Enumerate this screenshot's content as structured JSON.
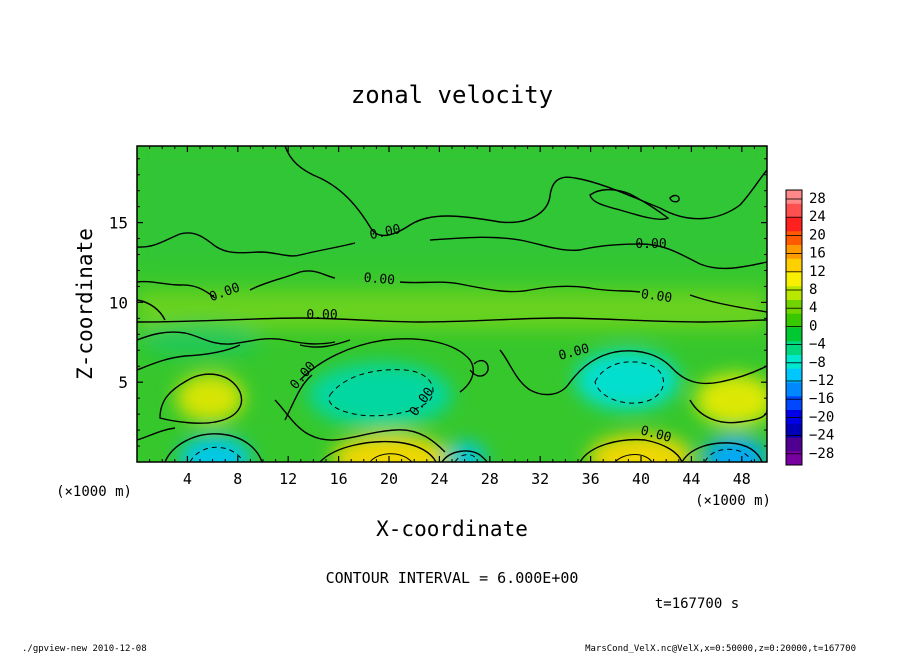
{
  "chart_data": {
    "type": "heatmap",
    "title": "zonal velocity",
    "xlabel": "X-coordinate",
    "ylabel": "Z-coordinate",
    "x_unit_left": "(×1000 m)",
    "x_unit_right": "(×1000 m)",
    "xlim": [
      0,
      50
    ],
    "ylim": [
      0,
      19.8
    ],
    "x_ticks": [
      4,
      8,
      12,
      16,
      20,
      24,
      28,
      32,
      36,
      40,
      44,
      48
    ],
    "y_ticks": [
      5,
      10,
      15
    ],
    "contour_interval_text": "CONTOUR INTERVAL = 6.000E+00",
    "contour_labels": [
      "0.00",
      "0.00",
      "0.00",
      "0.00",
      "0.00",
      "0.00",
      "0.00",
      "0.00",
      "0.00",
      "0.00"
    ],
    "colorbar": {
      "labels": [
        "28",
        "24",
        "20",
        "16",
        "12",
        "8",
        "4",
        "0",
        "−4",
        "−8",
        "−12",
        "−16",
        "−20",
        "−24",
        "−28"
      ],
      "colors": [
        "#ff8888",
        "#ff5050",
        "#ff2020",
        "#ff5a00",
        "#ff9a00",
        "#ffd000",
        "#f8f000",
        "#b8e800",
        "#70d400",
        "#38c800",
        "#00c830",
        "#00d880",
        "#00e8d0",
        "#00c8ff",
        "#0088ff",
        "#0048ff",
        "#0000e8",
        "#0000b8",
        "#500090",
        "#7800a0"
      ]
    },
    "field_features": [
      {
        "x": 6,
        "z": 1,
        "value": -10
      },
      {
        "x": 20,
        "z": 1,
        "value": 9
      },
      {
        "x": 26,
        "z": 0.8,
        "value": -8
      },
      {
        "x": 40,
        "z": 1,
        "value": 10
      },
      {
        "x": 46,
        "z": 1,
        "value": -8
      },
      {
        "x": 5,
        "z": 4.4,
        "value": 7
      },
      {
        "x": 46,
        "z": 4.5,
        "value": 7
      },
      {
        "x": 22,
        "z": 4.5,
        "value": -7
      },
      {
        "x": 39,
        "z": 5.5,
        "value": -8
      },
      {
        "x": 25,
        "z": 10,
        "value": 4
      }
    ]
  },
  "footer": {
    "time": "t=167700 s",
    "left": "./gpview-new   2010-12-08",
    "right": "MarsCond_VelX.nc@VelX,x=0:50000,z=0:20000,t=167700"
  }
}
